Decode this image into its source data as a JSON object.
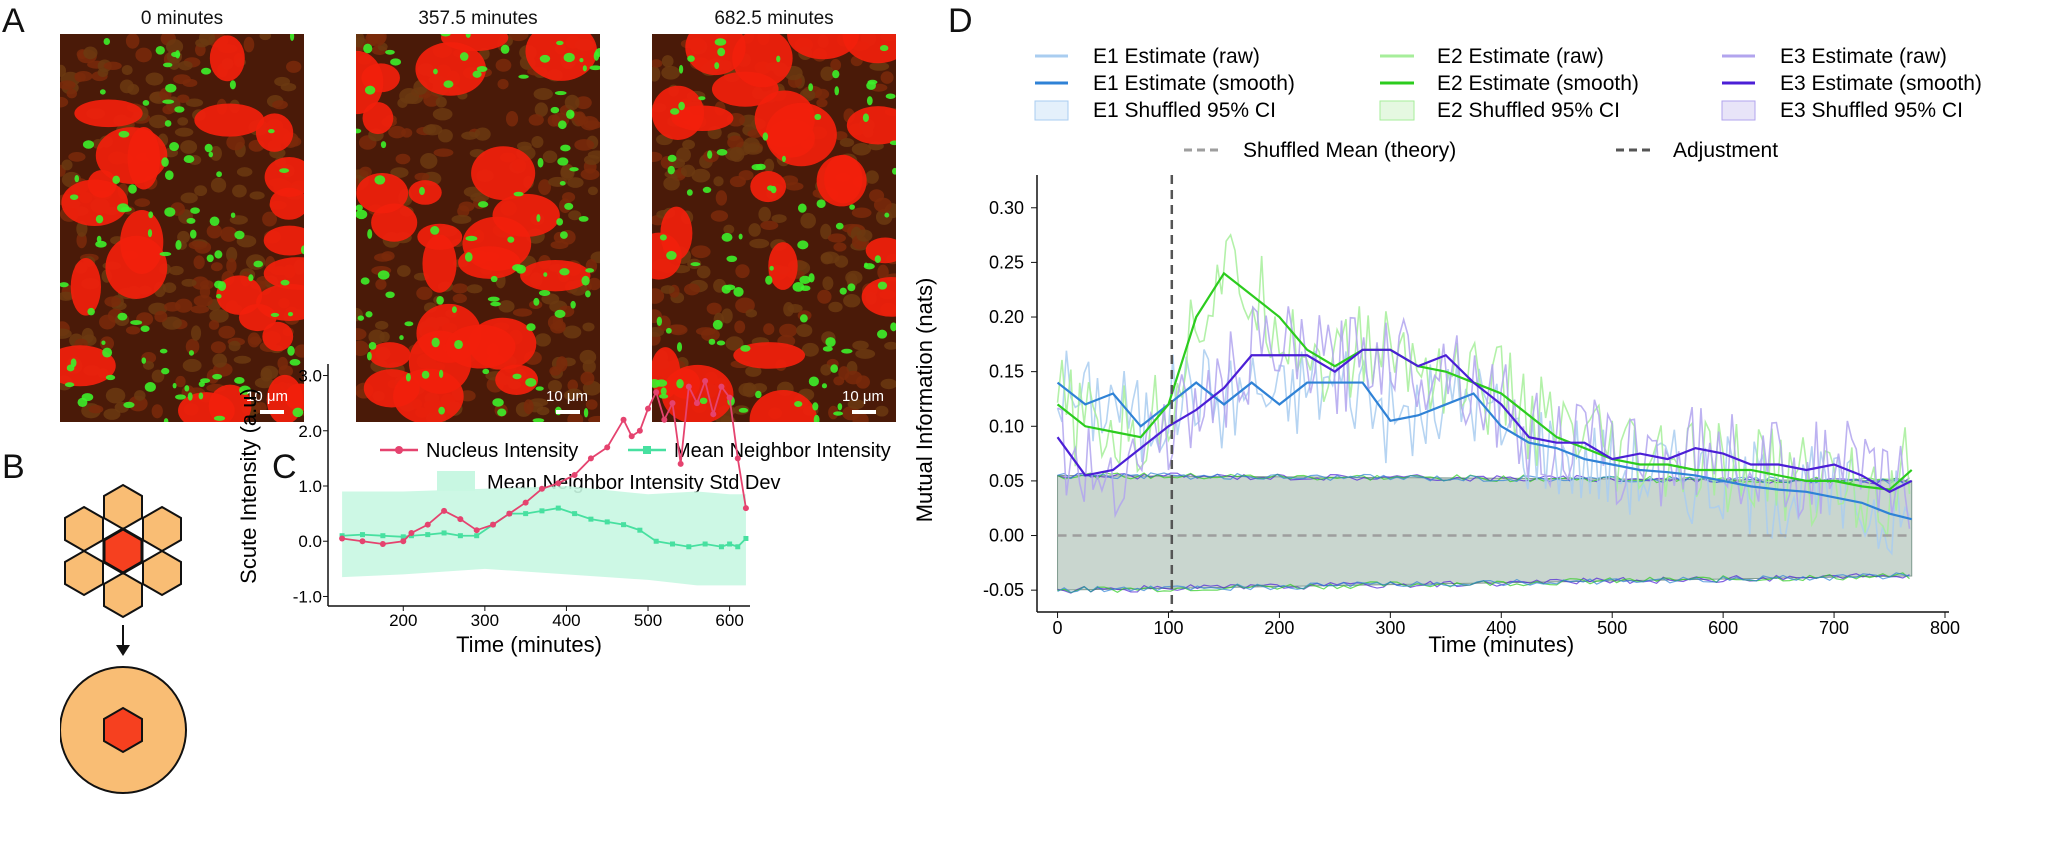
{
  "panels": {
    "a": {
      "letter": "A",
      "images": [
        {
          "title": "0 minutes",
          "scale_label": "10 μm"
        },
        {
          "title": "357.5 minutes",
          "scale_label": "10 μm"
        },
        {
          "title": "682.5 minutes",
          "scale_label": "10 μm"
        }
      ]
    },
    "b": {
      "letter": "B"
    },
    "c": {
      "letter": "C",
      "chart_data": {
        "type": "line",
        "ylabel": "Scute Intensity (a.u)",
        "xlabel": "Time (minutes)",
        "xlim": [
          120,
          625
        ],
        "ylim": [
          -1.1,
          3.1
        ],
        "xticks": [
          "200",
          "300",
          "400",
          "500",
          "600"
        ],
        "yticks": [
          "3.0",
          "2.0",
          "1.0",
          "0.0",
          "-1.0"
        ],
        "legend": {
          "nucleus": "Nucleus Intensity",
          "neighbor": "Mean Neighbor Intensity",
          "band": "Mean Neighbor Intensity Std Dev"
        },
        "colors": {
          "nucleus": "#e5436f",
          "neighbor": "#47e0a0",
          "band": "#c8f7e2"
        },
        "series": [
          {
            "name": "Nucleus Intensity",
            "x": [
              125,
              150,
              175,
              200,
              210,
              230,
              250,
              270,
              290,
              310,
              330,
              350,
              370,
              390,
              410,
              430,
              450,
              470,
              480,
              490,
              500,
              510,
              520,
              530,
              540,
              550,
              560,
              570,
              580,
              590,
              600,
              610,
              620
            ],
            "values": [
              0.05,
              0.0,
              -0.05,
              0.0,
              0.15,
              0.3,
              0.55,
              0.4,
              0.2,
              0.3,
              0.5,
              0.7,
              0.95,
              1.05,
              1.2,
              1.5,
              1.7,
              2.2,
              1.9,
              2.0,
              2.4,
              2.7,
              2.2,
              2.5,
              1.4,
              2.8,
              2.5,
              2.9,
              2.3,
              2.8,
              2.6,
              1.5,
              0.6
            ]
          },
          {
            "name": "Mean Neighbor Intensity",
            "x": [
              125,
              150,
              175,
              200,
              210,
              230,
              250,
              270,
              290,
              310,
              330,
              350,
              370,
              390,
              410,
              430,
              450,
              470,
              490,
              510,
              530,
              550,
              570,
              590,
              600,
              610,
              620
            ],
            "values": [
              0.1,
              0.12,
              0.1,
              0.08,
              0.1,
              0.12,
              0.15,
              0.1,
              0.1,
              0.3,
              0.5,
              0.5,
              0.55,
              0.6,
              0.5,
              0.4,
              0.35,
              0.3,
              0.2,
              0.0,
              -0.05,
              -0.1,
              -0.05,
              -0.1,
              -0.05,
              -0.1,
              0.05
            ]
          },
          {
            "name": "Mean Neighbor Intensity Std Dev",
            "x": [
              125,
              200,
              300,
              400,
              500,
              560,
              600,
              620
            ],
            "lower": [
              -0.65,
              -0.6,
              -0.5,
              -0.6,
              -0.7,
              -0.8,
              -0.8,
              -0.8
            ],
            "upper": [
              0.9,
              0.9,
              0.95,
              1.0,
              0.85,
              0.9,
              0.85,
              0.85
            ]
          }
        ]
      }
    },
    "d": {
      "letter": "D",
      "chart_data": {
        "type": "line",
        "ylabel": "Mutual Information (nats)",
        "xlabel": "Time (minutes)",
        "xlim": [
          -5,
          800
        ],
        "ylim": [
          -0.07,
          0.33
        ],
        "xticks": [
          "0",
          "100",
          "200",
          "300",
          "400",
          "500",
          "600",
          "700",
          "800"
        ],
        "yticks": [
          "0.30",
          "0.25",
          "0.20",
          "0.15",
          "0.10",
          "0.05",
          "0.00",
          "-0.05"
        ],
        "adjustment_x": 103,
        "legend": {
          "e1_raw": "E1 Estimate (raw)",
          "e1_smooth": "E1 Estimate (smooth)",
          "e1_ci": "E1 Shuffled 95% CI",
          "e2_raw": "E2 Estimate (raw)",
          "e2_smooth": "E2 Estimate (smooth)",
          "e2_ci": "E2 Shuffled 95% CI",
          "e3_raw": "E3 Estimate (raw)",
          "e3_smooth": "E3 Estimate (smooth)",
          "e3_ci": "E3 Shuffled 95% CI",
          "shuffled_mean": "Shuffled Mean (theory)",
          "adjustment": "Adjustment"
        },
        "colors": {
          "e1": "#2f82d6",
          "e1_light": "#a9cdf0",
          "e2": "#2ccc1e",
          "e2_light": "#a6ee9a",
          "e3": "#4b1fd6",
          "e3_light": "#b2a4ee",
          "ci_fill": "#c9d6cf",
          "mean": "#9e9e9e",
          "adj": "#555555"
        },
        "x": [
          0,
          25,
          50,
          75,
          100,
          125,
          150,
          175,
          200,
          225,
          250,
          275,
          300,
          325,
          350,
          375,
          400,
          425,
          450,
          475,
          500,
          525,
          550,
          575,
          600,
          625,
          650,
          675,
          700,
          725,
          750,
          770
        ],
        "series": [
          {
            "name": "E1 Estimate (smooth)",
            "values": [
              0.14,
              0.12,
              0.13,
              0.1,
              0.12,
              0.14,
              0.12,
              0.14,
              0.12,
              0.14,
              0.14,
              0.14,
              0.105,
              0.11,
              0.12,
              0.13,
              0.1,
              0.085,
              0.08,
              0.07,
              0.065,
              0.06,
              0.058,
              0.055,
              0.05,
              0.045,
              0.042,
              0.04,
              0.035,
              0.03,
              0.02,
              0.015
            ]
          },
          {
            "name": "E2 Estimate (smooth)",
            "values": [
              0.12,
              0.1,
              0.095,
              0.09,
              0.12,
              0.2,
              0.24,
              0.22,
              0.2,
              0.17,
              0.155,
              0.17,
              0.17,
              0.155,
              0.15,
              0.14,
              0.13,
              0.11,
              0.09,
              0.08,
              0.07,
              0.065,
              0.065,
              0.06,
              0.06,
              0.06,
              0.055,
              0.05,
              0.05,
              0.045,
              0.042,
              0.06
            ]
          },
          {
            "name": "E3 Estimate (smooth)",
            "values": [
              0.09,
              0.055,
              0.06,
              0.08,
              0.1,
              0.115,
              0.135,
              0.165,
              0.165,
              0.165,
              0.15,
              0.17,
              0.17,
              0.155,
              0.165,
              0.14,
              0.12,
              0.09,
              0.085,
              0.085,
              0.07,
              0.075,
              0.07,
              0.08,
              0.075,
              0.065,
              0.065,
              0.06,
              0.065,
              0.055,
              0.04,
              0.05
            ]
          },
          {
            "name": "Shuffled 95% CI",
            "upper": [
              0.055,
              0.05
            ],
            "lower": [
              -0.05,
              -0.037
            ],
            "x_range": [
              0,
              770
            ]
          }
        ]
      }
    }
  }
}
